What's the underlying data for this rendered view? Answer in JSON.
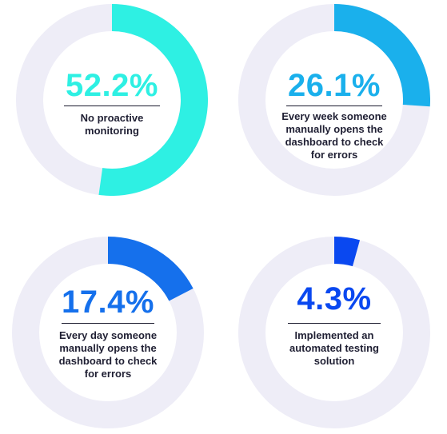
{
  "chart_data": [
    {
      "type": "pie",
      "value": 52.2,
      "value_label": "52.2%",
      "caption": "No proactive monitoring",
      "color": "#2ef0e3",
      "track_color": "#eeedf7"
    },
    {
      "type": "pie",
      "value": 26.1,
      "value_label": "26.1%",
      "caption": "Every week someone manually opens the dashboard to check for errors",
      "color": "#1ab0ec",
      "track_color": "#eeedf7"
    },
    {
      "type": "pie",
      "value": 17.4,
      "value_label": "17.4%",
      "caption": "Every day someone manually opens the dashboard to check for errors",
      "color": "#1570ec",
      "track_color": "#eeedf7"
    },
    {
      "type": "pie",
      "value": 4.3,
      "value_label": "4.3%",
      "caption": "Implemented an automated testing solution",
      "color": "#0a48f0",
      "track_color": "#eeedf7"
    }
  ]
}
